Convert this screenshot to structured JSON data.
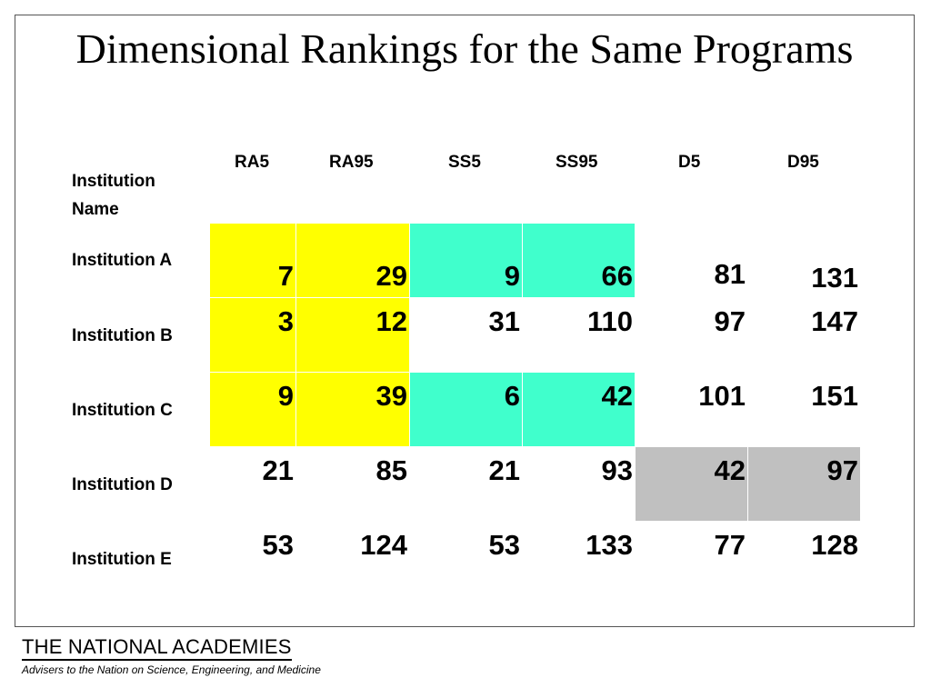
{
  "title": "Dimensional Rankings for the Same Programs",
  "table": {
    "header_label": "Institution Name",
    "columns": [
      "RA5",
      "RA95",
      "SS5",
      "SS95",
      "D5",
      "D95"
    ],
    "rows": [
      {
        "label": "Institution A",
        "values": [
          "7",
          "29",
          "9",
          "66",
          "81",
          "131"
        ],
        "highlight": [
          "yellow",
          "yellow",
          "teal",
          "teal",
          "",
          ""
        ]
      },
      {
        "label": "Institution B",
        "values": [
          "3",
          "12",
          "31",
          "110",
          "97",
          "147"
        ],
        "highlight": [
          "yellow",
          "yellow",
          "",
          "",
          "",
          ""
        ]
      },
      {
        "label": "Institution C",
        "values": [
          "9",
          "39",
          "6",
          "42",
          "101",
          "151"
        ],
        "highlight": [
          "yellow",
          "yellow",
          "teal",
          "teal",
          "",
          ""
        ]
      },
      {
        "label": "Institution D",
        "values": [
          "21",
          "85",
          "21",
          "93",
          "42",
          "97"
        ],
        "highlight": [
          "",
          "",
          "",
          "",
          "gray",
          "gray"
        ]
      },
      {
        "label": "Institution E",
        "values": [
          "53",
          "124",
          "53",
          "133",
          "77",
          "128"
        ],
        "highlight": [
          "",
          "",
          "",
          "",
          "",
          ""
        ]
      }
    ]
  },
  "colors": {
    "yellow": "#ffff00",
    "teal": "#40ffcc",
    "gray": "#c0c0c0"
  },
  "footer": {
    "org_name": "THE NATIONAL ACADEMIES",
    "tagline": "Advisers to the Nation on Science, Engineering, and Medicine"
  }
}
